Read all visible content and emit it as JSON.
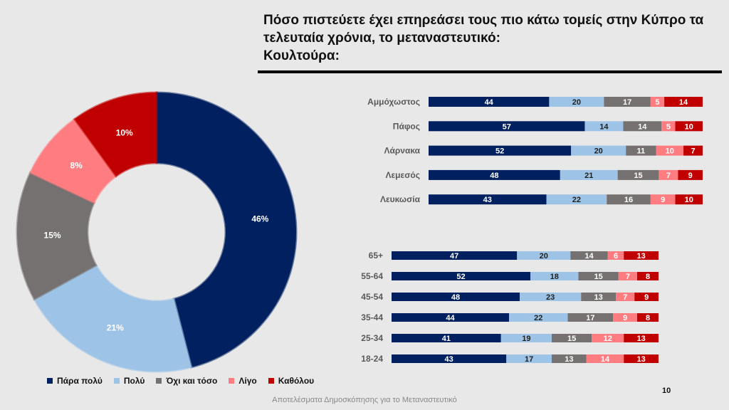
{
  "title": {
    "line1": "Πόσο πιστεύετε έχει επηρεάσει τους πιο κάτω τομείς στην Κύπρο τα",
    "line2": "τελευταία χρόνια, το μεταναστευτικό:",
    "line3": "Κουλτούρα:"
  },
  "footer": {
    "text": "Αποτελέσματα Δημοσκόπησης για το Μεταναστευτικό",
    "page": "10"
  },
  "colors": {
    "Πάρα πολύ": "#002060",
    "Πολύ": "#9dc3e6",
    "Όχι και τόσο": "#767171",
    "Λίγο": "#ff7c80",
    "Καθόλου": "#c00000"
  },
  "legend": [
    "Πάρα πολύ",
    "Πολύ",
    "Όχι και τόσο",
    "Λίγο",
    "Καθόλου"
  ],
  "chart_data": [
    {
      "type": "pie",
      "variant": "donut",
      "categories": [
        "Πάρα πολύ",
        "Πολύ",
        "Όχι και τόσο",
        "Λίγο",
        "Καθόλου"
      ],
      "values": [
        46,
        21,
        15,
        8,
        10
      ],
      "labels": [
        "46%",
        "21%",
        "15%",
        "8%",
        "10%"
      ]
    },
    {
      "type": "bar",
      "orientation": "horizontal",
      "stacked": true,
      "categories": [
        "Αμμόχωστος",
        "Πάφος",
        "Λάρνακα",
        "Λεμεσός",
        "Λευκωσία"
      ],
      "series": [
        {
          "name": "Πάρα πολύ",
          "values": [
            44,
            57,
            52,
            48,
            43
          ]
        },
        {
          "name": "Πολύ",
          "values": [
            20,
            14,
            20,
            21,
            22
          ]
        },
        {
          "name": "Όχι και τόσο",
          "values": [
            17,
            14,
            11,
            15,
            16
          ]
        },
        {
          "name": "Λίγο",
          "values": [
            5,
            5,
            10,
            7,
            9
          ]
        },
        {
          "name": "Καθόλου",
          "values": [
            14,
            10,
            7,
            9,
            10
          ]
        }
      ]
    },
    {
      "type": "bar",
      "orientation": "horizontal",
      "stacked": true,
      "categories": [
        "65+",
        "55-64",
        "45-54",
        "35-44",
        "25-34",
        "18-24"
      ],
      "series": [
        {
          "name": "Πάρα πολύ",
          "values": [
            47,
            52,
            48,
            44,
            41,
            43
          ]
        },
        {
          "name": "Πολύ",
          "values": [
            20,
            18,
            23,
            22,
            19,
            17
          ]
        },
        {
          "name": "Όχι και τόσο",
          "values": [
            14,
            15,
            13,
            17,
            15,
            13
          ]
        },
        {
          "name": "Λίγο",
          "values": [
            6,
            7,
            7,
            9,
            12,
            14
          ]
        },
        {
          "name": "Καθόλου",
          "values": [
            13,
            8,
            9,
            8,
            13,
            13
          ]
        }
      ]
    }
  ]
}
